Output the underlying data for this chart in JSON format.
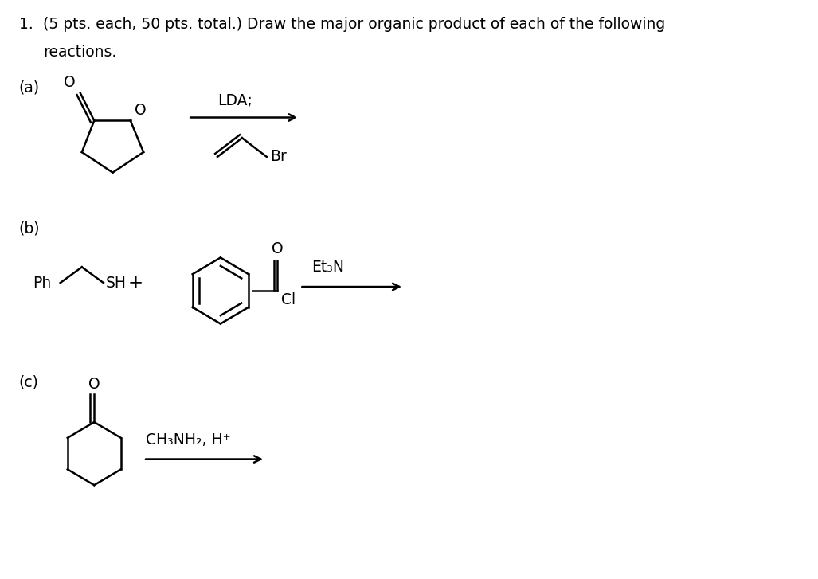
{
  "background_color": "#ffffff",
  "text_color": "#000000",
  "font_family": "DejaVu Sans",
  "fig_width": 10.27,
  "fig_height": 7.27,
  "dpi": 100,
  "title_line1": "1.   (5 pts. each, 50 pts. total.) Draw the major organic product of each of the following",
  "title_line2": "     reactions.",
  "label_a": "(a)",
  "label_b": "(b)",
  "label_c": "(c)",
  "lda_text": "LDA;",
  "br_text": "Br",
  "ph_text": "Ph",
  "sh_text": "SH",
  "plus_text": "+",
  "cl_text": "Cl",
  "et3n_text": "Et₃N",
  "o_text": "O",
  "ch3nh2_text": "CH₃NH₂, H⁺"
}
